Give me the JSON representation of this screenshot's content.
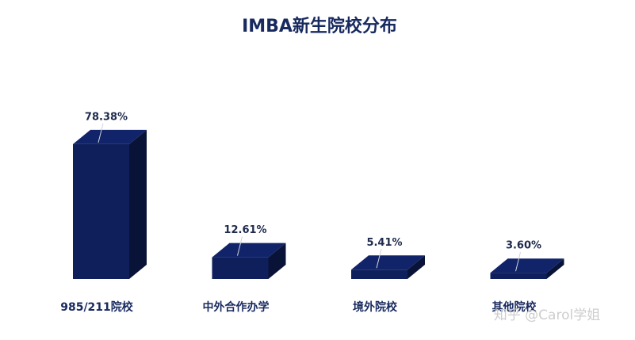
{
  "chart_data": {
    "type": "bar3d",
    "title": "IMBA新生院校分布",
    "categories": [
      "985/211院校",
      "中外合作办学",
      "境外院校",
      "其他院校"
    ],
    "values": [
      78.38,
      12.61,
      5.41,
      3.6
    ],
    "value_labels": [
      "78.38%",
      "12.61%",
      "5.41%",
      "3.60%"
    ],
    "color": "#0f1f5c",
    "watermark": "知乎 @Carol学姐"
  }
}
